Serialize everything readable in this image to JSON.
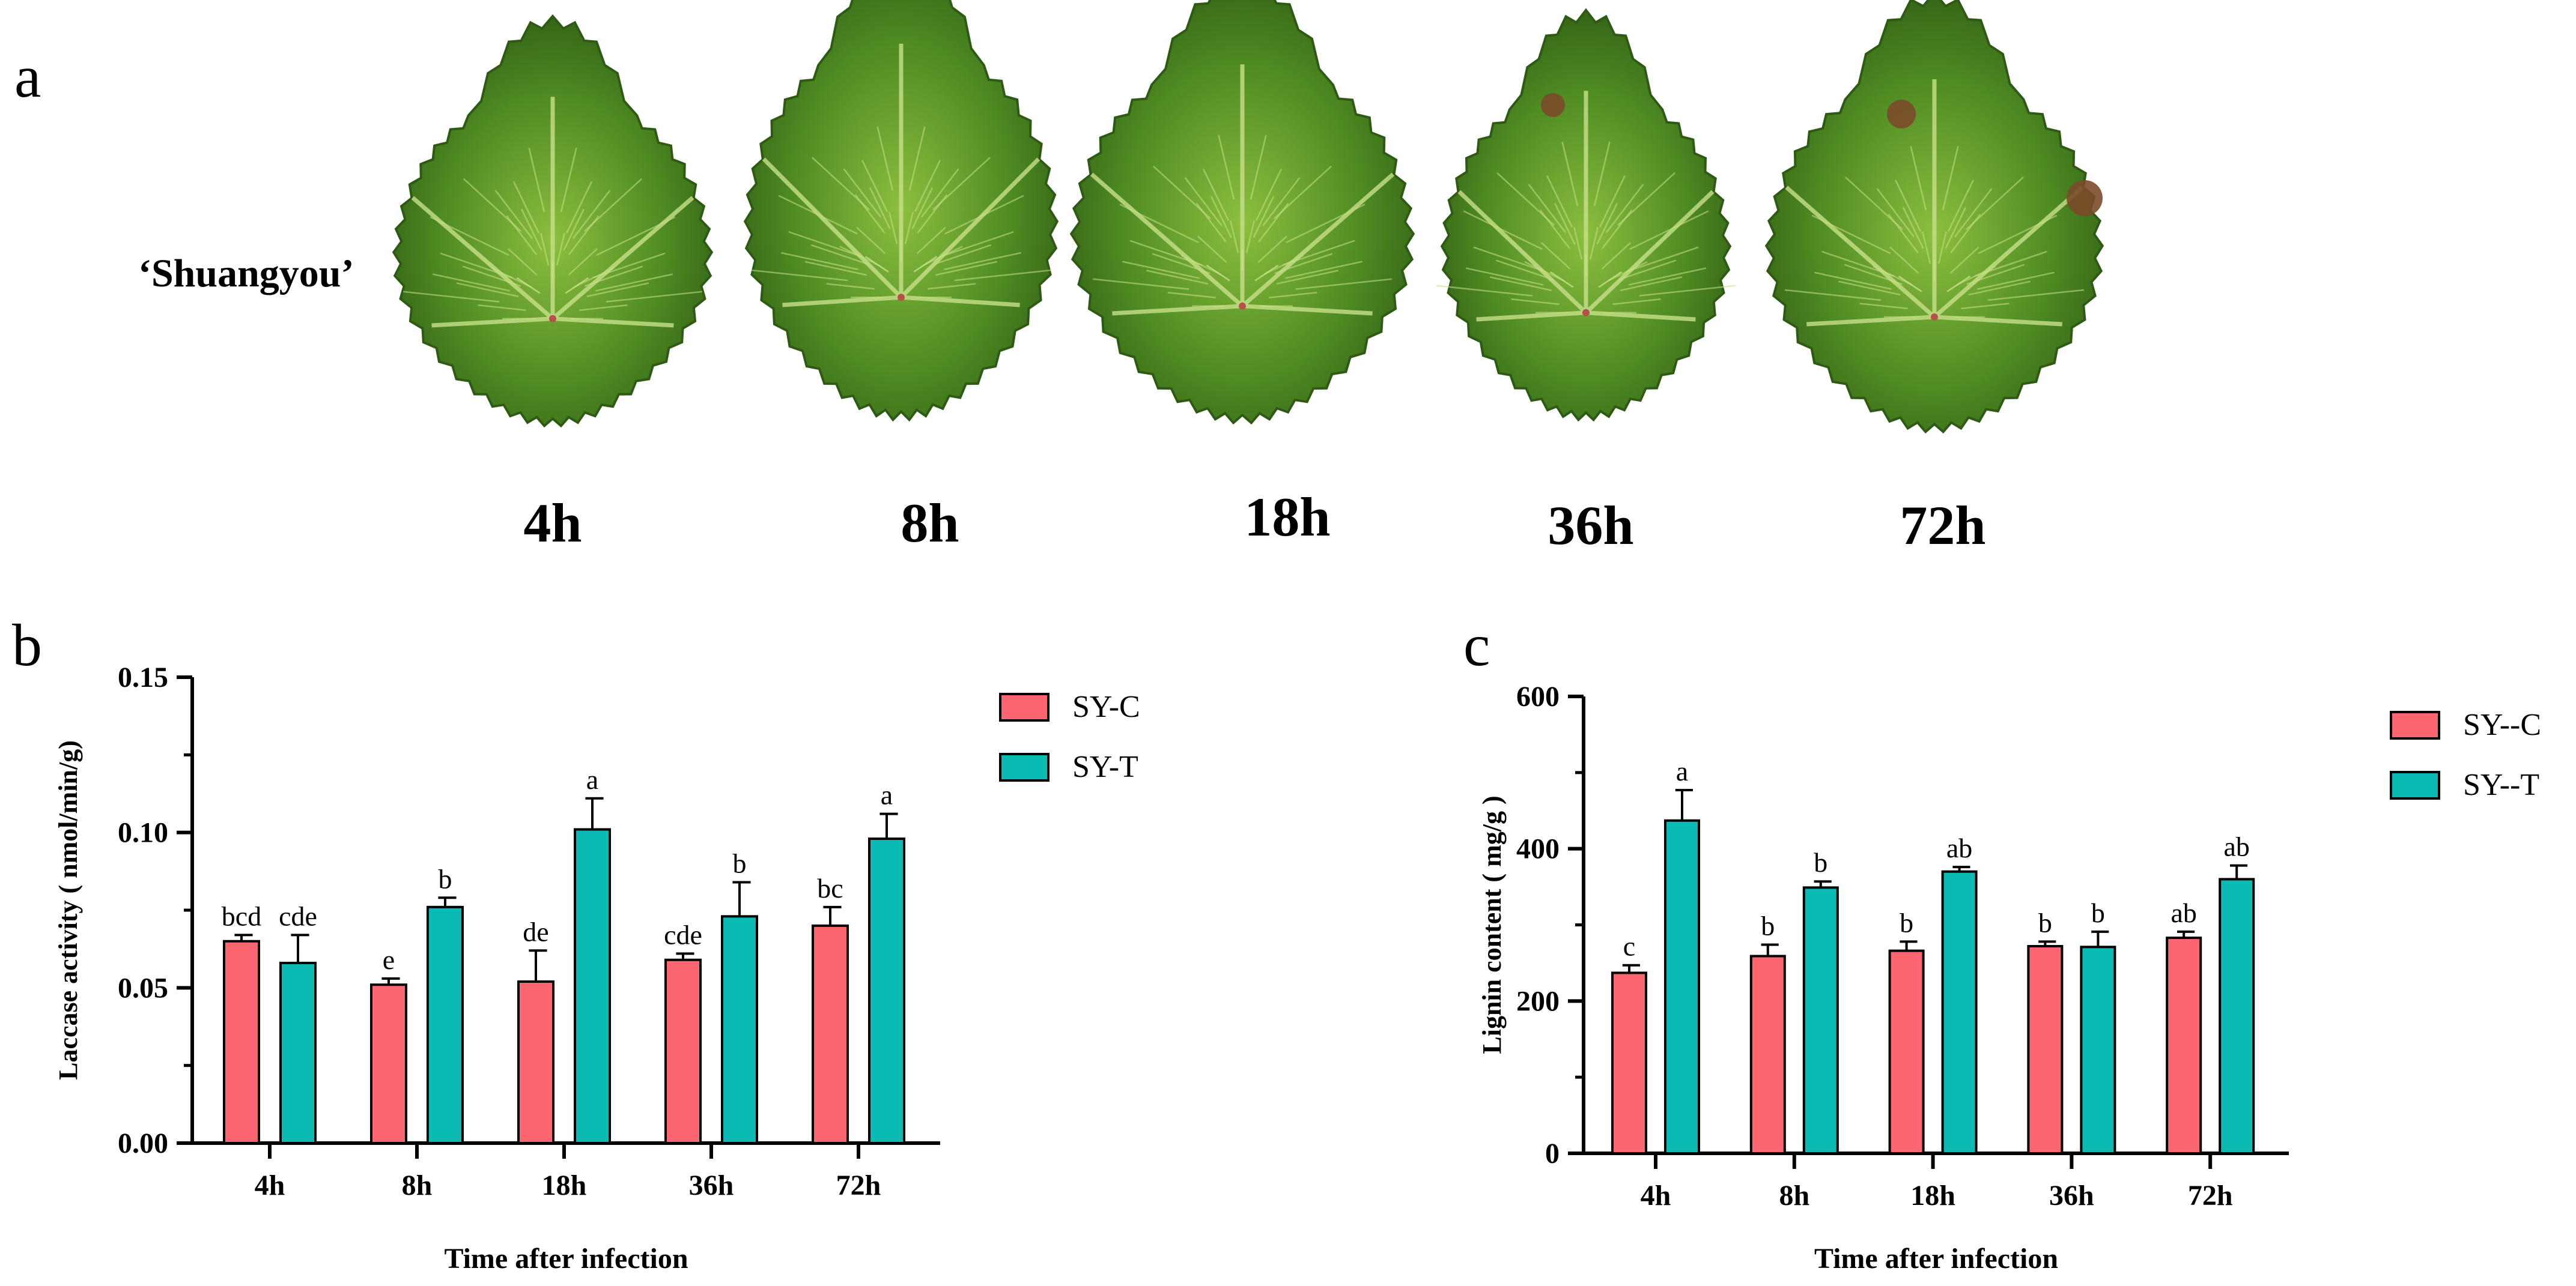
{
  "panel_a": {
    "letter": "a",
    "variety_label": "‘Shuangyou’",
    "time_labels": [
      "4h",
      "8h",
      "18h",
      "36h",
      "72h"
    ],
    "leaf_icon": "grape-leaf-icon",
    "colors": {
      "leaf_dark": "#2f5a14",
      "leaf_mid": "#4d8a22",
      "leaf_light": "#8cbf3f",
      "vein": "#c9e08a",
      "petiole": "#b5504a",
      "lesion": "#7a4a2a"
    }
  },
  "chart_data": [
    {
      "panel_letter": "b",
      "type": "bar",
      "title": "",
      "xlabel": "Time after infection",
      "ylabel": "Laccase activity ( nmol/min/g)",
      "categories": [
        "4h",
        "8h",
        "18h",
        "36h",
        "72h"
      ],
      "ylim": [
        0,
        0.15
      ],
      "yticks": [
        0.0,
        0.05,
        0.1,
        0.15
      ],
      "ytick_labels": [
        "0.00",
        "0.05",
        "0.10",
        "0.15"
      ],
      "legend_position": "top-right",
      "grid": false,
      "series": [
        {
          "name": "SY-C",
          "color": "#fd6570",
          "values": [
            0.065,
            0.051,
            0.052,
            0.059,
            0.07
          ],
          "errors": [
            0.002,
            0.002,
            0.01,
            0.002,
            0.006
          ],
          "letters": [
            "bcd",
            "e",
            "de",
            "cde",
            "bc"
          ]
        },
        {
          "name": "SY-T",
          "color": "#0bbab3",
          "values": [
            0.058,
            0.076,
            0.101,
            0.073,
            0.098
          ],
          "errors": [
            0.009,
            0.003,
            0.01,
            0.011,
            0.008
          ],
          "letters": [
            "cde",
            "b",
            "a",
            "b",
            "a"
          ]
        }
      ]
    },
    {
      "panel_letter": "c",
      "type": "bar",
      "title": "",
      "xlabel": "Time after infection",
      "ylabel": "Lignin content ( mg/g )",
      "categories": [
        "4h",
        "8h",
        "18h",
        "36h",
        "72h"
      ],
      "ylim": [
        0,
        600
      ],
      "yticks": [
        0,
        200,
        400,
        600
      ],
      "ytick_labels": [
        "0",
        "200",
        "400",
        "600"
      ],
      "legend_position": "top-right",
      "grid": false,
      "series": [
        {
          "name": "SY--C",
          "color": "#fd6570",
          "values": [
            237,
            259,
            266,
            272,
            283
          ],
          "errors": [
            10,
            15,
            12,
            6,
            8
          ],
          "letters": [
            "c",
            "b",
            "b",
            "b",
            "ab"
          ]
        },
        {
          "name": "SY--T",
          "color": "#0bbab3",
          "values": [
            437,
            349,
            370,
            271,
            360
          ],
          "errors": [
            40,
            8,
            6,
            20,
            18
          ],
          "letters": [
            "a",
            "b",
            "ab",
            "b",
            "ab"
          ]
        }
      ]
    }
  ]
}
